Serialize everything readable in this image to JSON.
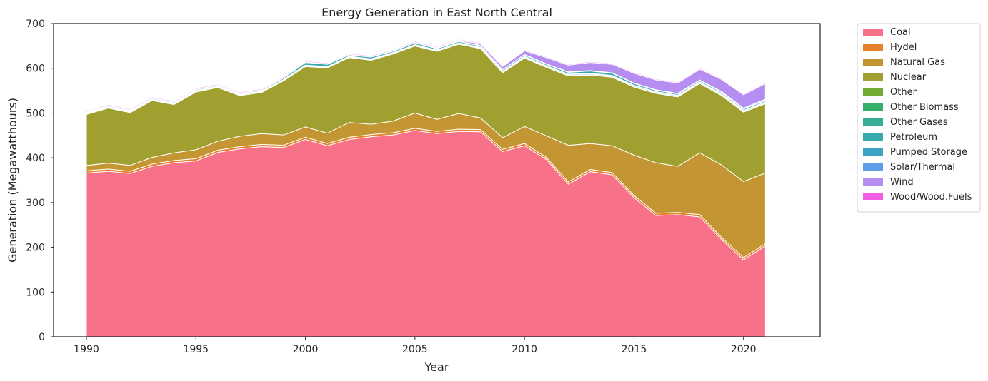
{
  "chart_data": {
    "type": "area",
    "stacked": true,
    "title": "Energy Generation in East North Central",
    "xlabel": "Year",
    "ylabel": "Generation (Megawatthours)",
    "xlim": [
      1988.5,
      2023.5
    ],
    "ylim": [
      0,
      700
    ],
    "xticks": [
      1990,
      1995,
      2000,
      2005,
      2010,
      2015,
      2020
    ],
    "yticks": [
      0,
      100,
      200,
      300,
      400,
      500,
      600,
      700
    ],
    "grid": false,
    "legend_position": "outside-right",
    "x": [
      1990,
      1991,
      1992,
      1993,
      1994,
      1995,
      1996,
      1997,
      1998,
      1999,
      2000,
      2001,
      2002,
      2003,
      2004,
      2005,
      2006,
      2007,
      2008,
      2009,
      2010,
      2011,
      2012,
      2013,
      2014,
      2015,
      2016,
      2017,
      2018,
      2019,
      2020,
      2021
    ],
    "series": [
      {
        "name": "Coal",
        "color": "#f77189",
        "values": [
          366,
          370,
          365,
          381,
          389,
          393,
          412,
          420,
          425,
          423,
          441,
          427,
          441,
          447,
          451,
          461,
          454,
          459,
          458,
          414,
          427,
          396,
          341,
          369,
          362,
          311,
          271,
          273,
          268,
          217,
          172,
          203
        ]
      },
      {
        "name": "Hydel",
        "color": "#e5802b",
        "values": [
          5,
          5,
          5,
          5,
          5,
          5,
          5,
          5,
          5,
          5,
          5,
          5,
          5,
          5,
          5,
          5,
          5,
          5,
          5,
          5,
          5,
          5,
          5,
          5,
          5,
          5,
          5,
          5,
          5,
          5,
          5,
          5
        ]
      },
      {
        "name": "Natural Gas",
        "color": "#c39633",
        "values": [
          12,
          13,
          13,
          15,
          17,
          20,
          20,
          23,
          24,
          23,
          23,
          23,
          33,
          23,
          26,
          34,
          27,
          35,
          26,
          26,
          38,
          48,
          82,
          58,
          60,
          90,
          113,
          103,
          138,
          162,
          170,
          158
        ]
      },
      {
        "name": "Nuclear",
        "color": "#a0a031",
        "values": [
          114,
          123,
          118,
          127,
          108,
          129,
          120,
          91,
          92,
          121,
          135,
          146,
          145,
          143,
          150,
          150,
          152,
          155,
          155,
          145,
          153,
          153,
          155,
          153,
          153,
          152,
          155,
          155,
          155,
          155,
          155,
          155
        ]
      },
      {
        "name": "Other",
        "color": "#6faa32",
        "values": [
          1,
          1,
          1,
          1,
          1,
          1,
          1,
          1,
          1,
          1,
          1,
          1,
          1,
          1,
          1,
          1,
          1,
          1,
          1,
          1,
          1,
          1,
          1,
          1,
          1,
          1,
          1,
          1,
          1,
          1,
          1,
          1
        ]
      },
      {
        "name": "Other Biomass",
        "color": "#34af6a",
        "values": [
          1,
          1,
          1,
          1,
          1,
          1,
          1,
          1,
          1,
          1,
          1,
          1,
          1,
          1,
          1,
          1,
          1,
          1,
          1,
          1,
          2,
          2,
          2,
          2,
          2,
          2,
          2,
          2,
          2,
          2,
          2,
          2
        ]
      },
      {
        "name": "Other Gases",
        "color": "#36ad95",
        "values": [
          1,
          1,
          1,
          1,
          1,
          1,
          1,
          1,
          1,
          1,
          1,
          1,
          1,
          1,
          1,
          1,
          1,
          1,
          1,
          1,
          1,
          1,
          1,
          1,
          1,
          1,
          1,
          1,
          1,
          1,
          1,
          1
        ]
      },
      {
        "name": "Petroleum",
        "color": "#38aaac",
        "values": [
          1,
          2,
          2,
          2,
          2,
          2,
          2,
          2,
          2,
          3,
          6,
          5,
          3,
          4,
          3,
          4,
          3,
          3,
          3,
          3,
          3,
          3,
          4,
          5,
          5,
          4,
          3,
          3,
          3,
          3,
          3,
          3
        ]
      },
      {
        "name": "Pumped Storage",
        "color": "#3ba4c3",
        "values": [
          1,
          1,
          1,
          1,
          1,
          1,
          1,
          1,
          1,
          1,
          1,
          1,
          1,
          1,
          1,
          1,
          1,
          1,
          1,
          1,
          1,
          1,
          1,
          1,
          1,
          1,
          1,
          1,
          1,
          1,
          1,
          1
        ]
      },
      {
        "name": "Solar/Thermal",
        "color": "#5d9ee6",
        "values": [
          0,
          0,
          0,
          0,
          0,
          0,
          0,
          0,
          0,
          0,
          0,
          0,
          0,
          0,
          0,
          0,
          0,
          0,
          0,
          0,
          0,
          0,
          0,
          0,
          0,
          0,
          0,
          0,
          0,
          1,
          1,
          2
        ]
      },
      {
        "name": "Wind",
        "color": "#b68ef2",
        "values": [
          0,
          0,
          0,
          0,
          0,
          0,
          0,
          0,
          0,
          0,
          0,
          0,
          0,
          0,
          0,
          0,
          1,
          2,
          4,
          7,
          8,
          14,
          15,
          18,
          19,
          22,
          22,
          23,
          24,
          27,
          30,
          35
        ]
      },
      {
        "name": "Wood/Wood.Fuels",
        "color": "#f15fe6",
        "values": [
          2,
          2,
          2,
          2,
          2,
          2,
          2,
          2,
          2,
          2,
          2,
          2,
          2,
          2,
          2,
          2,
          2,
          2,
          2,
          2,
          2,
          2,
          2,
          2,
          2,
          2,
          2,
          2,
          2,
          2,
          2,
          2
        ]
      }
    ]
  }
}
